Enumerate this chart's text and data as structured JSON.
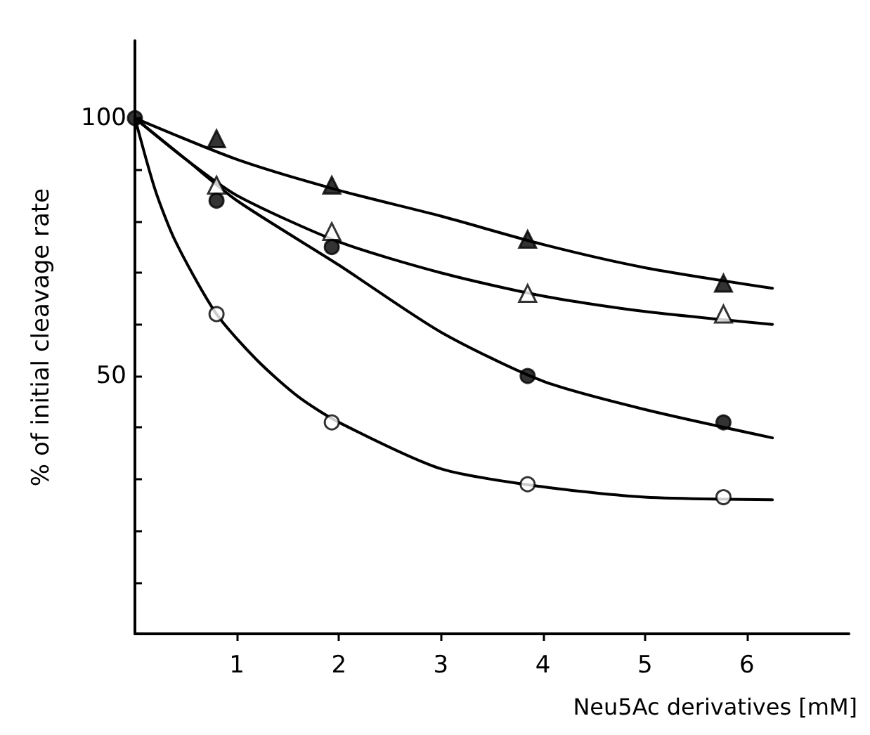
{
  "chart_data": {
    "type": "scatter",
    "xlabel": "Neu5Ac derivatives [mM]",
    "ylabel": "% of initial cleavage rate",
    "xlim": [
      0,
      7
    ],
    "xticks": [
      1,
      2,
      3,
      4,
      5,
      6
    ],
    "ylim": [
      0,
      115
    ],
    "yticks": [
      {
        "value": 10,
        "label": null
      },
      {
        "value": 20,
        "label": null
      },
      {
        "value": 30,
        "label": null
      },
      {
        "value": 40,
        "label": null
      },
      50,
      {
        "value": 60,
        "label": null
      },
      {
        "value": 70,
        "label": null
      },
      {
        "value": 80,
        "label": null
      },
      {
        "value": 90,
        "label": null
      },
      100
    ],
    "grid": false,
    "series": [
      {
        "type": "line",
        "marker": "none",
        "line_style": "solid",
        "color": "#000000",
        "x": [
          0,
          1,
          2,
          3,
          4,
          5,
          6.25
        ],
        "values": [
          100,
          92,
          86,
          81,
          75.5,
          71,
          67
        ]
      },
      {
        "type": "line",
        "marker": "none",
        "line_style": "solid",
        "color": "#000000",
        "x": [
          0,
          0.5,
          1,
          2,
          3,
          4,
          5,
          6.25
        ],
        "values": [
          100,
          92,
          85,
          76,
          70,
          65.5,
          62.5,
          60
        ]
      },
      {
        "type": "line",
        "marker": "none",
        "line_style": "solid",
        "color": "#000000",
        "x": [
          0,
          0.5,
          1,
          2,
          3,
          4,
          5,
          6.25
        ],
        "values": [
          100,
          92,
          84,
          71.5,
          58.5,
          49,
          43.5,
          38
        ]
      },
      {
        "type": "line",
        "marker": "none",
        "line_style": "solid",
        "color": "#000000",
        "x": [
          0,
          0.2,
          0.4,
          0.8,
          1.2,
          1.6,
          2,
          3,
          4,
          5,
          6.25
        ],
        "values": [
          100,
          86,
          76,
          62,
          53,
          46,
          41,
          32,
          28.5,
          26.5,
          26
        ]
      },
      {
        "marker": "triangle",
        "color": "#000000",
        "x": [
          0.8,
          1.93,
          3.85,
          5.77
        ],
        "values": [
          96,
          87,
          76.5,
          68
        ]
      },
      {
        "marker": "triangle",
        "color": "#ffffff",
        "x": [
          0.8,
          1.93,
          3.85,
          5.77
        ],
        "values": [
          87,
          78,
          66,
          62
        ]
      },
      {
        "marker": "circle",
        "color": "#000000",
        "x": [
          0,
          0.8,
          1.93,
          3.85,
          5.77
        ],
        "values": [
          100,
          84,
          75,
          50,
          41
        ]
      },
      {
        "marker": "circle",
        "color": "#ffffff",
        "x": [
          0.8,
          1.93,
          3.85,
          5.77
        ],
        "values": [
          62,
          41,
          29,
          26.5
        ]
      }
    ]
  }
}
